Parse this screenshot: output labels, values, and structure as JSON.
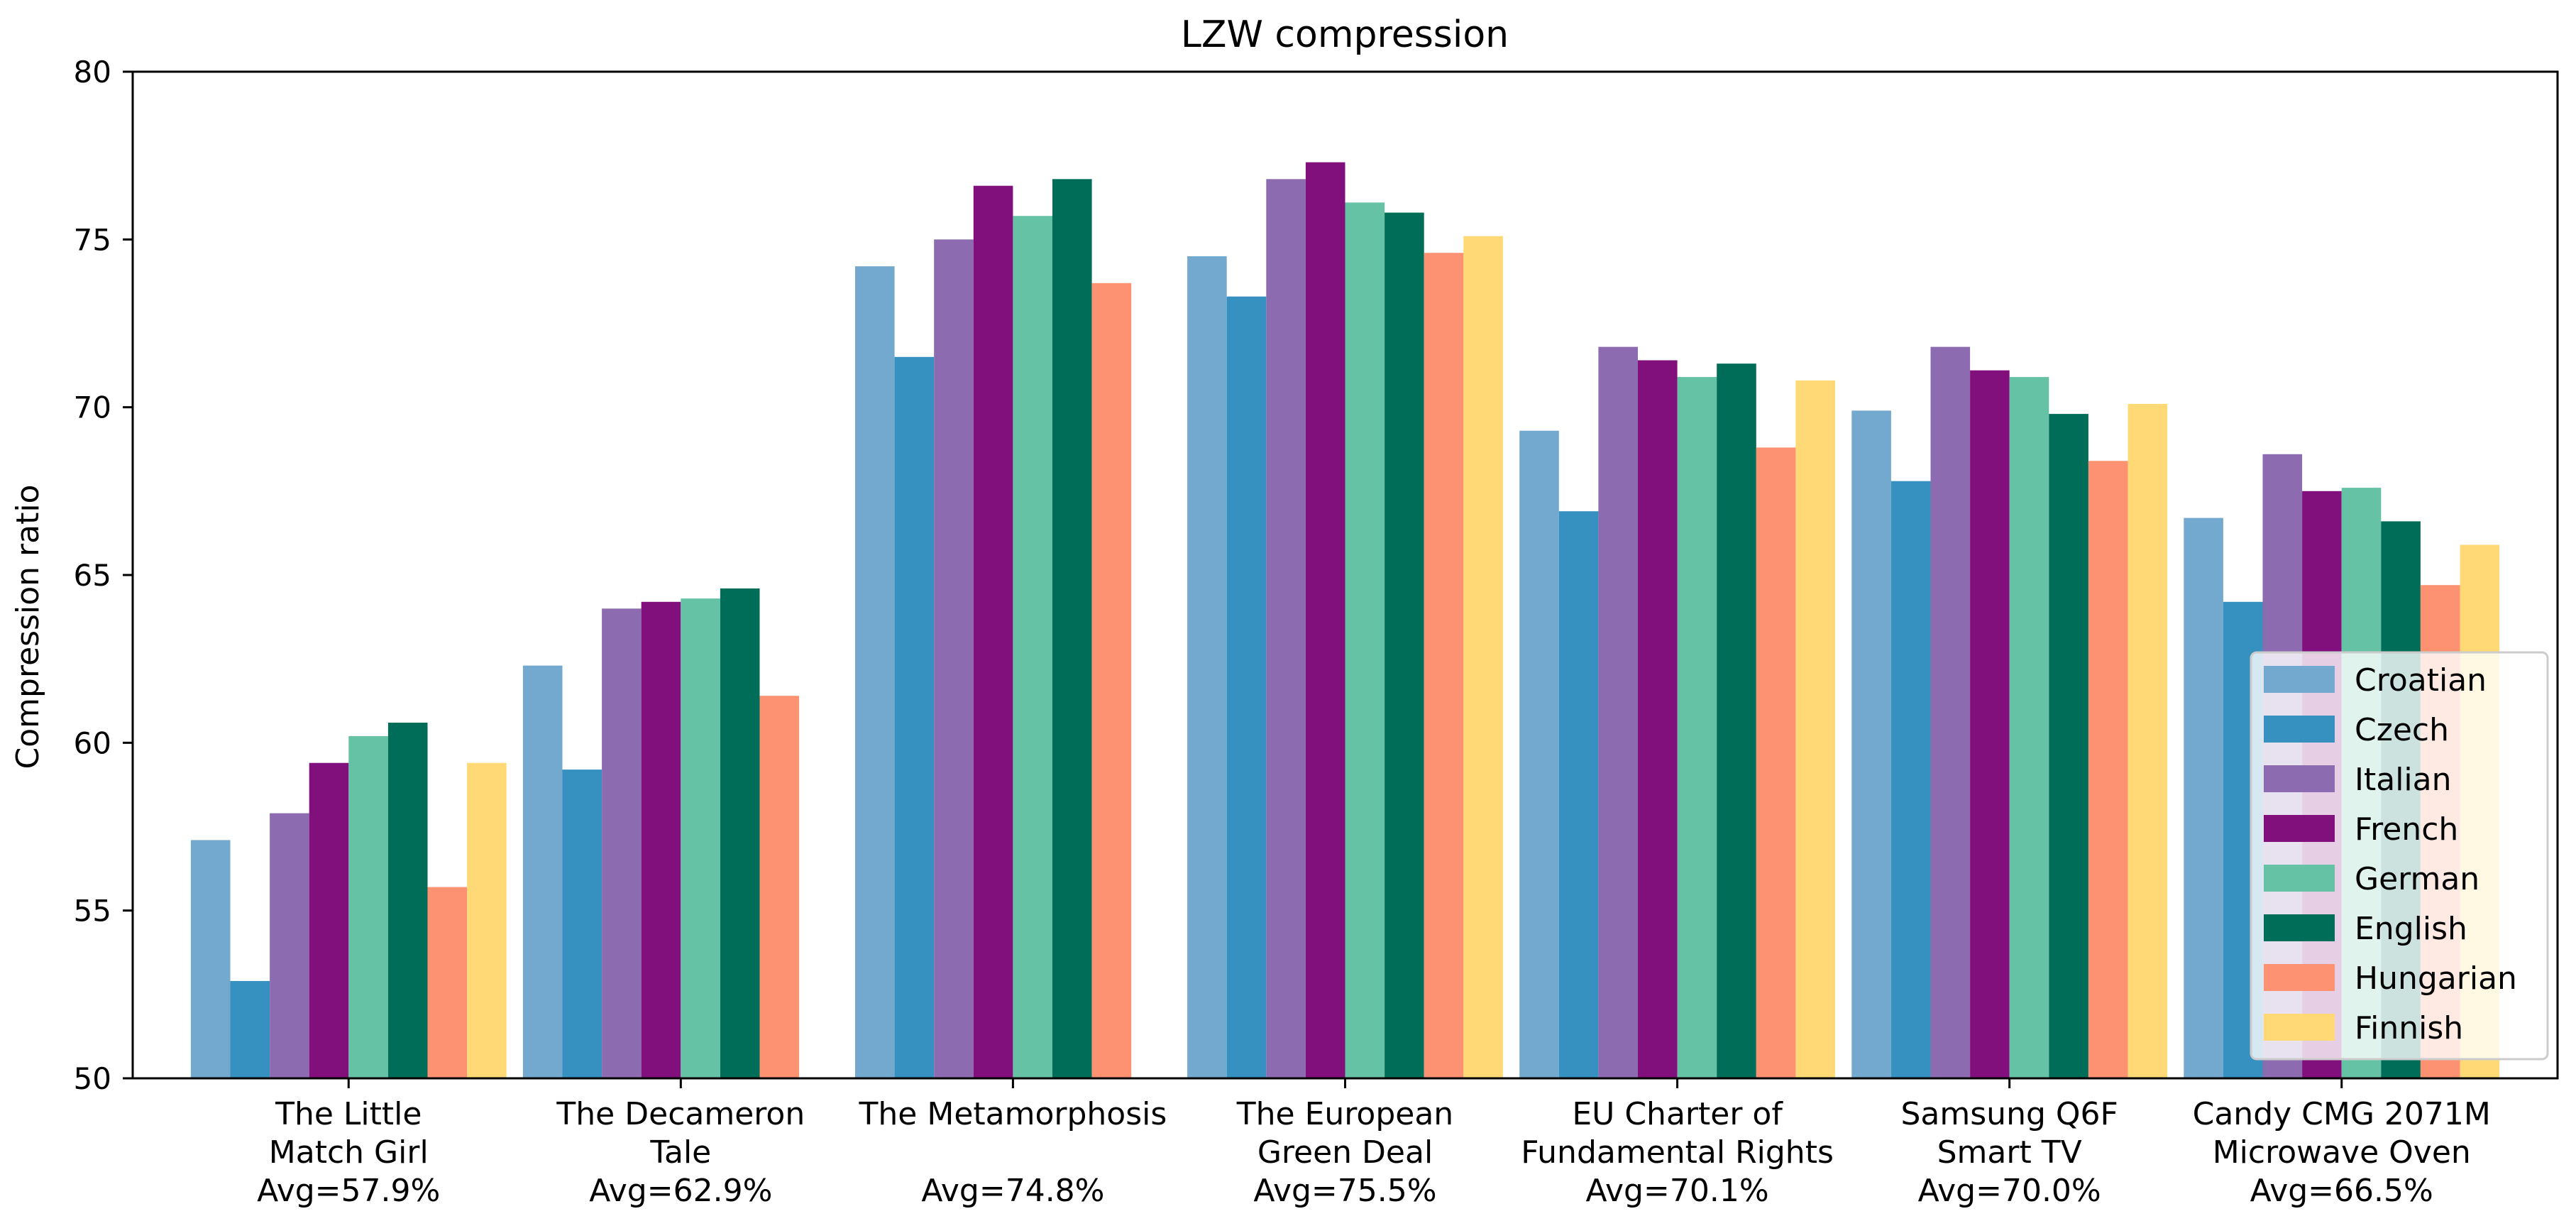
{
  "chart_data": {
    "type": "bar",
    "title": "LZW compression",
    "xlabel": "",
    "ylabel": "Compression ratio",
    "ylim": [
      50,
      80
    ],
    "yticks": [
      "50",
      "55",
      "60",
      "65",
      "70",
      "75",
      "80"
    ],
    "grid": false,
    "legend_position": "lower-right",
    "categories": [
      [
        "The Little",
        "Match Girl",
        "Avg=57.9%"
      ],
      [
        "The Decameron",
        "Tale",
        "Avg=62.9%"
      ],
      [
        "The Metamorphosis",
        "",
        "Avg=74.8%"
      ],
      [
        "The European",
        "Green Deal",
        "Avg=75.5%"
      ],
      [
        "EU Charter of",
        "Fundamental Rights",
        "Avg=70.1%"
      ],
      [
        "Samsung Q6F",
        "Smart TV",
        "Avg=70.0%"
      ],
      [
        "Candy CMG 2071M",
        "Microwave Oven",
        "Avg=66.5%"
      ]
    ],
    "series": [
      {
        "name": "Croatian",
        "color": "#74a9cf",
        "values": [
          57.1,
          62.3,
          74.2,
          74.5,
          69.3,
          69.9,
          66.7
        ]
      },
      {
        "name": "Czech",
        "color": "#3690c0",
        "values": [
          52.9,
          59.2,
          71.5,
          73.3,
          66.9,
          67.8,
          64.2
        ]
      },
      {
        "name": "Italian",
        "color": "#8c6bb1",
        "values": [
          57.9,
          64.0,
          75.0,
          76.8,
          71.8,
          71.8,
          68.6
        ]
      },
      {
        "name": "French",
        "color": "#810f7c",
        "values": [
          59.4,
          64.2,
          76.6,
          77.3,
          71.4,
          71.1,
          67.5
        ]
      },
      {
        "name": "German",
        "color": "#66c2a4",
        "values": [
          60.2,
          64.3,
          75.7,
          76.1,
          70.9,
          70.9,
          67.6
        ]
      },
      {
        "name": "English",
        "color": "#006d59",
        "values": [
          60.6,
          64.6,
          76.8,
          75.8,
          71.3,
          69.8,
          66.6
        ]
      },
      {
        "name": "Hungarian",
        "color": "#fc9272",
        "values": [
          55.7,
          61.4,
          73.7,
          74.6,
          68.8,
          68.4,
          64.7
        ]
      },
      {
        "name": "Finnish",
        "color": "#fed976",
        "values": [
          59.4,
          null,
          null,
          75.1,
          70.8,
          70.1,
          65.9
        ]
      }
    ]
  }
}
